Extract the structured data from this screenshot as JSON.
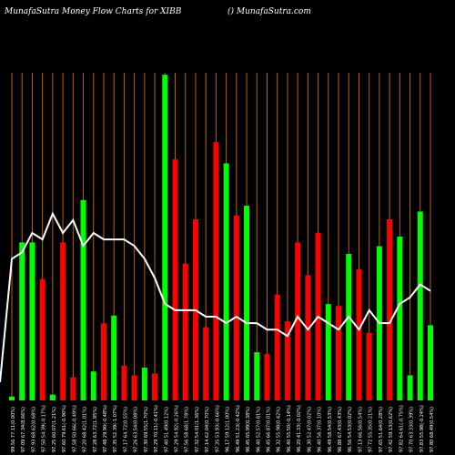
{
  "header": {
    "left": "MunafaSutra  Money Flow  Charts for XIBB",
    "right": "() MunafaSutra.com"
  },
  "colors": {
    "background": "#000000",
    "grid": "#b8621b",
    "up": "#00ff00",
    "down": "#ff0000",
    "line": "#ffffff",
    "label": "#ffffff"
  },
  "chart_data": {
    "type": "bar",
    "title": "MunafaSutra  Money Flow  Charts for XIBB",
    "x_labels": [
      "99.56 77.11(0.00%)",
      "97.09 67.34(8.66%)",
      "97.93 68.62(0.68%)",
      "97.50 54.39(-0.17%)",
      "97.25 60.07(1.21%)",
      "97.60 79.61(-0.90%)",
      "97.58 50.66(-0.49%)",
      "97.20 68.42(1.01%)",
      "97.28 63.72(1.95%)",
      "97.48 29.90(-0.48%)",
      "97.35 52.39(-1.07%)",
      "97.17 64.72(0.55%)",
      "97.26 63.54(0.08%)",
      "97.30 69.55(1.70%)",
      "97.29 70.11(-0.41%)",
      "97.40 51.49(0.12%)",
      "97.29 54.92(-0.26%)",
      "97.56 58.68(1.78%)",
      "97.32 54.01(1.36%)",
      "97.14 62.04(0.70%)",
      "97.35 53.93(-0.66%)",
      "96.17 59.12(1.00%)",
      "96.49 51.23(-0.42%)",
      "96.45 65.99(0.38%)",
      "96.40 52.57(0.81%)",
      "96.45 66.87(0.01%)",
      "96.32 55.98(0.42%)",
      "96.40 55.50(-0.14%)",
      "96.20 41.33(-0.02%)",
      "96.30 52.47(0.02%)",
      "96.40 56.37(0.10%)",
      "96.49 58.54(0.53%)",
      "96.88 67.43(0.43%)",
      "96.56 54.53(0.02%)",
      "97.13 66.56(0.54%)",
      "97.72 55.35(0.21%)",
      "97.65 51.64(0.28%)",
      "97.42 59.13(0.62%)",
      "97.82 64.61(-0.75%)",
      "97.70 63.33(0.39%)",
      "97.83 55.98(-0.24%)",
      "97.80 68.49(0.54%)"
    ],
    "colors": [
      "green",
      "green",
      "green",
      "red",
      "green",
      "red",
      "red",
      "green",
      "green",
      "red",
      "green",
      "red",
      "red",
      "green",
      "red",
      "green",
      "red",
      "red",
      "red",
      "red",
      "red",
      "green",
      "red",
      "green",
      "green",
      "red",
      "red",
      "red",
      "red",
      "red",
      "red",
      "green",
      "red",
      "green",
      "red",
      "red",
      "green",
      "red",
      "green",
      "green",
      "green",
      "green"
    ],
    "values": [
      2,
      82,
      82,
      63,
      3,
      82,
      12,
      104,
      15,
      40,
      44,
      18,
      13,
      17,
      14,
      169,
      125,
      71,
      94,
      38,
      134,
      123,
      96,
      101,
      25,
      24,
      55,
      41,
      82,
      65,
      87,
      50,
      49,
      76,
      68,
      35,
      80,
      94,
      85,
      13,
      98,
      39
    ],
    "line": [
      22,
      23,
      26,
      25,
      29,
      26,
      28,
      24,
      26,
      25,
      25,
      25,
      24,
      22,
      19,
      15,
      14,
      14,
      14,
      13,
      13,
      12,
      13,
      12,
      12,
      11,
      11,
      10,
      13,
      11,
      13,
      12,
      11,
      13,
      11,
      14,
      12,
      12,
      15,
      16,
      18,
      17
    ],
    "ylim": [
      0,
      170
    ],
    "line_ylim": [
      0,
      40
    ],
    "grid": true
  }
}
